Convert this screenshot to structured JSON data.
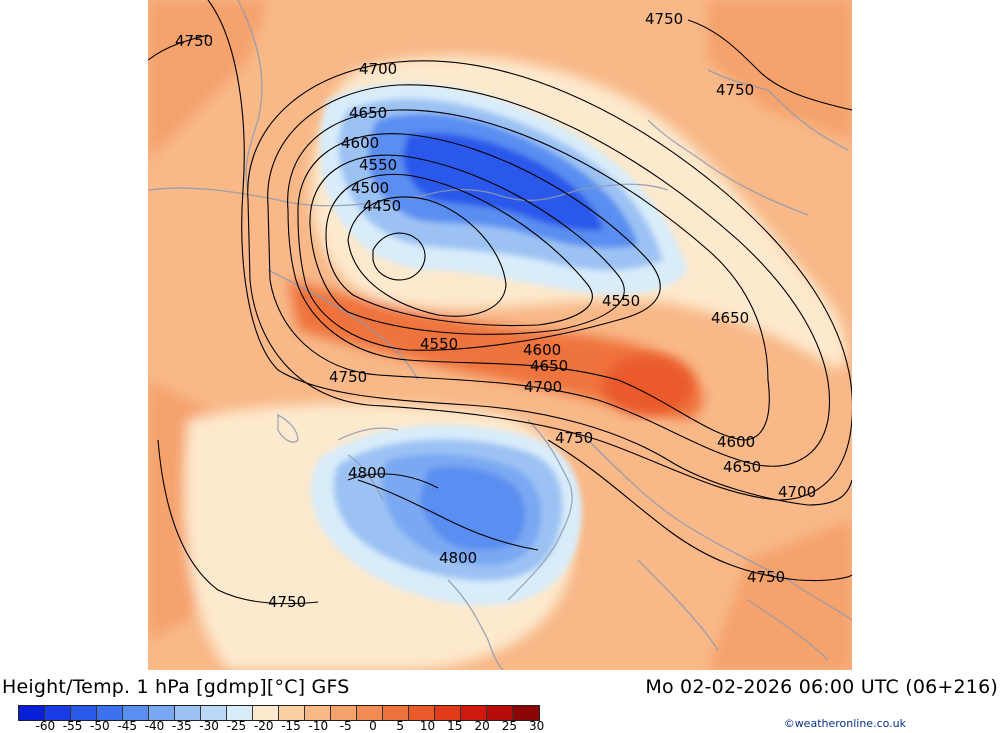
{
  "header": {
    "title_left": "Height/Temp. 1 hPa [gdmp][°C] GFS",
    "title_right": "Mo 02-02-2026 06:00 UTC (06+216)"
  },
  "credit": "©weatheronline.co.uk",
  "legend": {
    "colors": [
      "#0a1fd8",
      "#1a3ce6",
      "#2a58ea",
      "#3c72ee",
      "#5a8ef0",
      "#7aa8f2",
      "#9cc2f4",
      "#bcd8f7",
      "#d8ecfa",
      "#fde9cd",
      "#fbcfa4",
      "#f8b888",
      "#f5a26c",
      "#f38b52",
      "#ef733c",
      "#ea5a2a",
      "#e23b1c",
      "#d01a10",
      "#b80c0c",
      "#8c0606"
    ],
    "labels": [
      "-60",
      "-55",
      "-50",
      "-45",
      "-40",
      "-35",
      "-30",
      "-25",
      "-20",
      "-15",
      "-10",
      "-5",
      "0",
      "5",
      "10",
      "15",
      "20",
      "25",
      "30"
    ]
  },
  "contour_labels": {
    "c4750_nw": "4750",
    "c4750_ne": "4750",
    "c4750_ne2": "4750",
    "c4700_n": "4700",
    "c4650_n": "4650",
    "c4600_n": "4600",
    "c4550_n": "4550",
    "c4500_n": "4500",
    "c4450_n": "4450",
    "c4550_e": "4550",
    "c4650_e": "4650",
    "c4550_s": "4550",
    "c4600_s": "4600",
    "c4650_s": "4650",
    "c4700_s": "4700",
    "c4750_w": "4750",
    "c4750_c": "4750",
    "c4600_se": "4600",
    "c4650_se": "4650",
    "c4700_se": "4700",
    "c4800_n": "4800",
    "c4800_s": "4800",
    "c4750_sw": "4750",
    "c4750_se": "4750"
  }
}
